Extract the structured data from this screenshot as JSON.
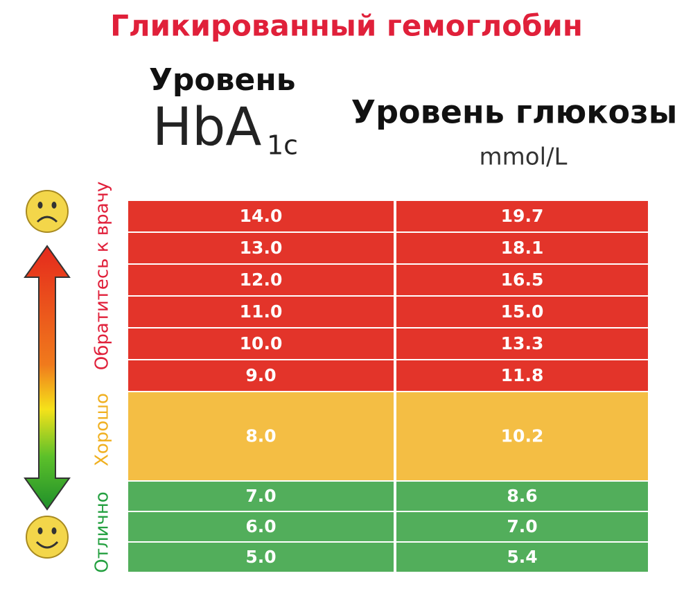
{
  "title": "Гликированный гемоглобин",
  "header": {
    "hba1c": {
      "line1": "Уровень",
      "main": "HbA",
      "subscript": "1c"
    },
    "glucose": {
      "title": "Уровень глюкозы",
      "unit": "mmol/L"
    }
  },
  "table": {
    "zones": [
      {
        "label": "Обратитесь к врачу",
        "color": "#e3342a",
        "text_color": "#e0203a",
        "rows": [
          [
            "14.0",
            "19.7"
          ],
          [
            "13.0",
            "18.1"
          ],
          [
            "12.0",
            "16.5"
          ],
          [
            "11.0",
            "15.0"
          ],
          [
            "10.0",
            "13.3"
          ],
          [
            "9.0",
            "11.8"
          ]
        ]
      },
      {
        "label": "Хорошо",
        "color": "#f4be44",
        "text_color": "#f0b020",
        "rows": [
          [
            "8.0",
            "10.2"
          ]
        ]
      },
      {
        "label": "Отлично",
        "color": "#52ae5b",
        "text_color": "#24a040",
        "rows": [
          [
            "7.0",
            "8.6"
          ],
          [
            "6.0",
            "7.0"
          ],
          [
            "5.0",
            "5.4"
          ]
        ]
      }
    ]
  }
}
